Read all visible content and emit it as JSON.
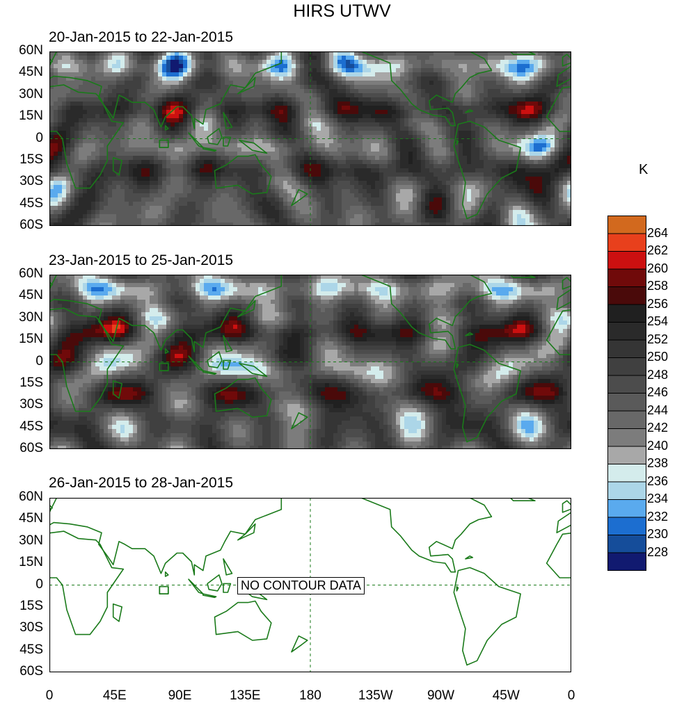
{
  "title": "HIRS UTWV",
  "panels": [
    {
      "title": "20-Jan-2015 to 22-Jan-2015",
      "has_data": true,
      "seed": 11
    },
    {
      "title": "23-Jan-2015 to 25-Jan-2015",
      "has_data": true,
      "seed": 29
    },
    {
      "title": "26-Jan-2015 to 28-Jan-2015",
      "has_data": false,
      "seed": 47,
      "message": "NO CONTOUR DATA"
    }
  ],
  "y_ticks": [
    "60N",
    "45N",
    "30N",
    "15N",
    "0",
    "15S",
    "30S",
    "45S",
    "60S"
  ],
  "x_ticks": [
    "0",
    "45E",
    "90E",
    "135E",
    "180",
    "135W",
    "90W",
    "45W",
    "0"
  ],
  "colorbar": {
    "unit": "K",
    "labels": [
      "264",
      "262",
      "260",
      "258",
      "256",
      "254",
      "252",
      "250",
      "248",
      "246",
      "244",
      "242",
      "240",
      "238",
      "236",
      "234",
      "232",
      "230",
      "228"
    ],
    "colors": [
      "#d2691e",
      "#e8401c",
      "#cc1010",
      "#700a0a",
      "#4a0a0a",
      "#202020",
      "#2a2a2a",
      "#353535",
      "#404040",
      "#4c4c4c",
      "#5a5a5a",
      "#686868",
      "#7c7c7c",
      "#a8a8a8",
      "#d4ecec",
      "#acd6e8",
      "#5aaaee",
      "#1c6ed0",
      "#154d9a",
      "#111a70"
    ]
  },
  "coastline_color": "#1a7a1a"
}
